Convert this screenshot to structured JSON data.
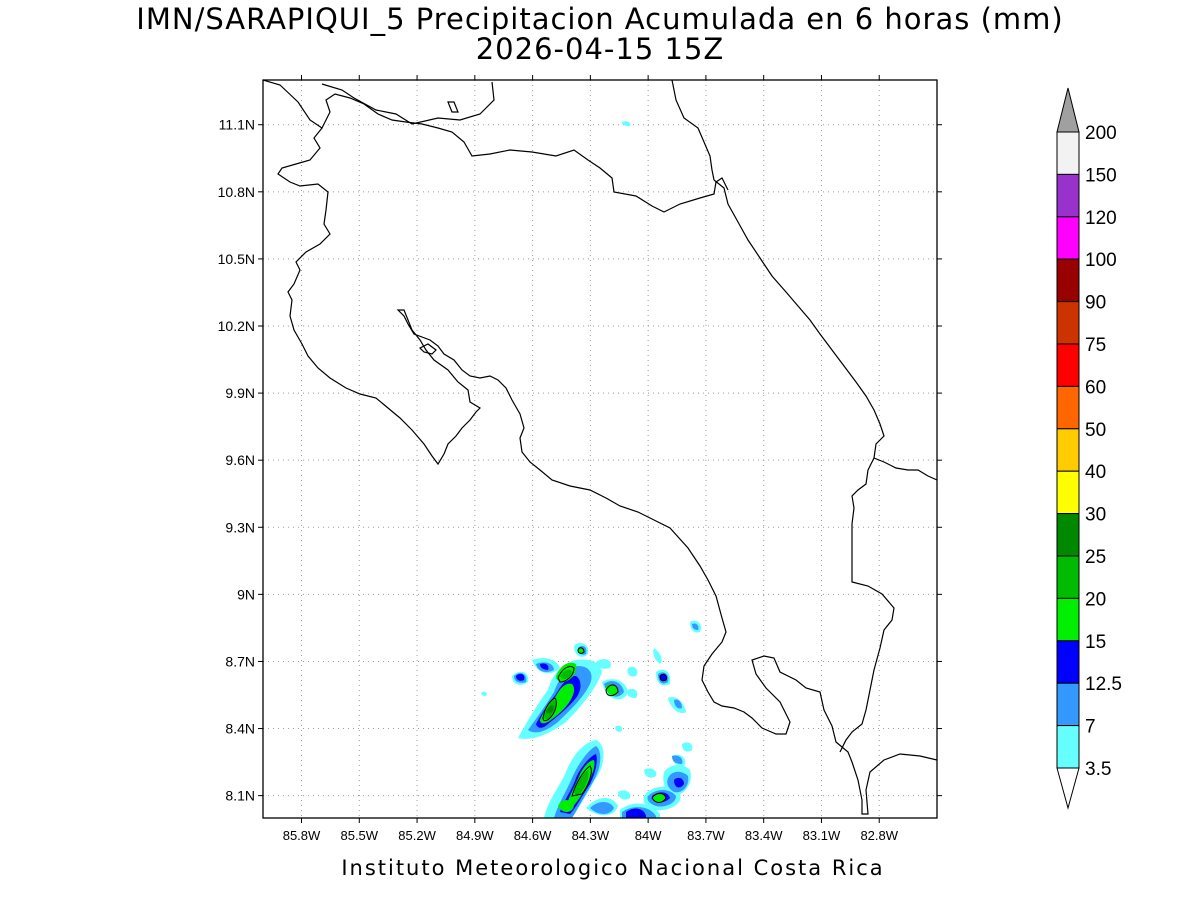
{
  "title_line1": "IMN/SARAPIQUI_5 Precipitacion Acumulada en 6 horas (mm)",
  "title_line2": "2026-04-15 15Z",
  "credit": "Instituto Meteorologico Nacional Costa Rica",
  "map": {
    "lon_range": [
      -86.0,
      -82.5
    ],
    "lat_range": [
      8.0,
      11.3
    ],
    "grid": true,
    "y_ticks": [
      {
        "value": 11.1,
        "label": "11.1N"
      },
      {
        "value": 10.8,
        "label": "10.8N"
      },
      {
        "value": 10.5,
        "label": "10.5N"
      },
      {
        "value": 10.2,
        "label": "10.2N"
      },
      {
        "value": 9.9,
        "label": "9.9N"
      },
      {
        "value": 9.6,
        "label": "9.6N"
      },
      {
        "value": 9.3,
        "label": "9.3N"
      },
      {
        "value": 9.0,
        "label": "9N"
      },
      {
        "value": 8.7,
        "label": "8.7N"
      },
      {
        "value": 8.4,
        "label": "8.4N"
      },
      {
        "value": 8.1,
        "label": "8.1N"
      }
    ],
    "x_ticks": [
      {
        "value": -85.8,
        "label": "85.8W"
      },
      {
        "value": -85.5,
        "label": "85.5W"
      },
      {
        "value": -85.2,
        "label": "85.2W"
      },
      {
        "value": -84.9,
        "label": "84.9W"
      },
      {
        "value": -84.6,
        "label": "84.6W"
      },
      {
        "value": -84.3,
        "label": "84.3W"
      },
      {
        "value": -84.0,
        "label": "84W"
      },
      {
        "value": -83.7,
        "label": "83.7W"
      },
      {
        "value": -83.4,
        "label": "83.4W"
      },
      {
        "value": -83.1,
        "label": "83.1W"
      },
      {
        "value": -82.8,
        "label": "82.8W"
      }
    ]
  },
  "colorbar": {
    "top_triangle_color": "#a0a0a0",
    "bottom_triangle_color": "#ffffff",
    "bins_top_to_bottom": [
      {
        "color": "#f2f2f2",
        "label": "200"
      },
      {
        "color": "#9932cc",
        "label": "150"
      },
      {
        "color": "#ff00ff",
        "label": "120"
      },
      {
        "color": "#990000",
        "label": "100"
      },
      {
        "color": "#cc3300",
        "label": "90"
      },
      {
        "color": "#ff0000",
        "label": "75"
      },
      {
        "color": "#ff6600",
        "label": "60"
      },
      {
        "color": "#ffcc00",
        "label": "50"
      },
      {
        "color": "#ffff00",
        "label": "40"
      },
      {
        "color": "#008800",
        "label": "30"
      },
      {
        "color": "#00bb00",
        "label": "25"
      },
      {
        "color": "#00ee00",
        "label": "20"
      },
      {
        "color": "#0000ff",
        "label": "15"
      },
      {
        "color": "#3399ff",
        "label": "12.5"
      },
      {
        "color": "#66ffff",
        "label": "7"
      }
    ],
    "bottom_label": "3.5"
  },
  "precip_cells": [
    {
      "lon": -84.4,
      "lat": 8.53,
      "max_mm": 25
    },
    {
      "lon": -84.45,
      "lat": 8.6,
      "max_mm": 20
    },
    {
      "lon": -84.48,
      "lat": 8.7,
      "max_mm": 20
    },
    {
      "lon": -84.16,
      "lat": 8.58,
      "max_mm": 20
    },
    {
      "lon": -84.33,
      "lat": 8.25,
      "max_mm": 20
    },
    {
      "lon": -84.42,
      "lat": 8.05,
      "max_mm": 20
    },
    {
      "lon": -83.97,
      "lat": 8.1,
      "max_mm": 20
    },
    {
      "lon": -83.86,
      "lat": 8.13,
      "max_mm": 15
    }
  ]
}
